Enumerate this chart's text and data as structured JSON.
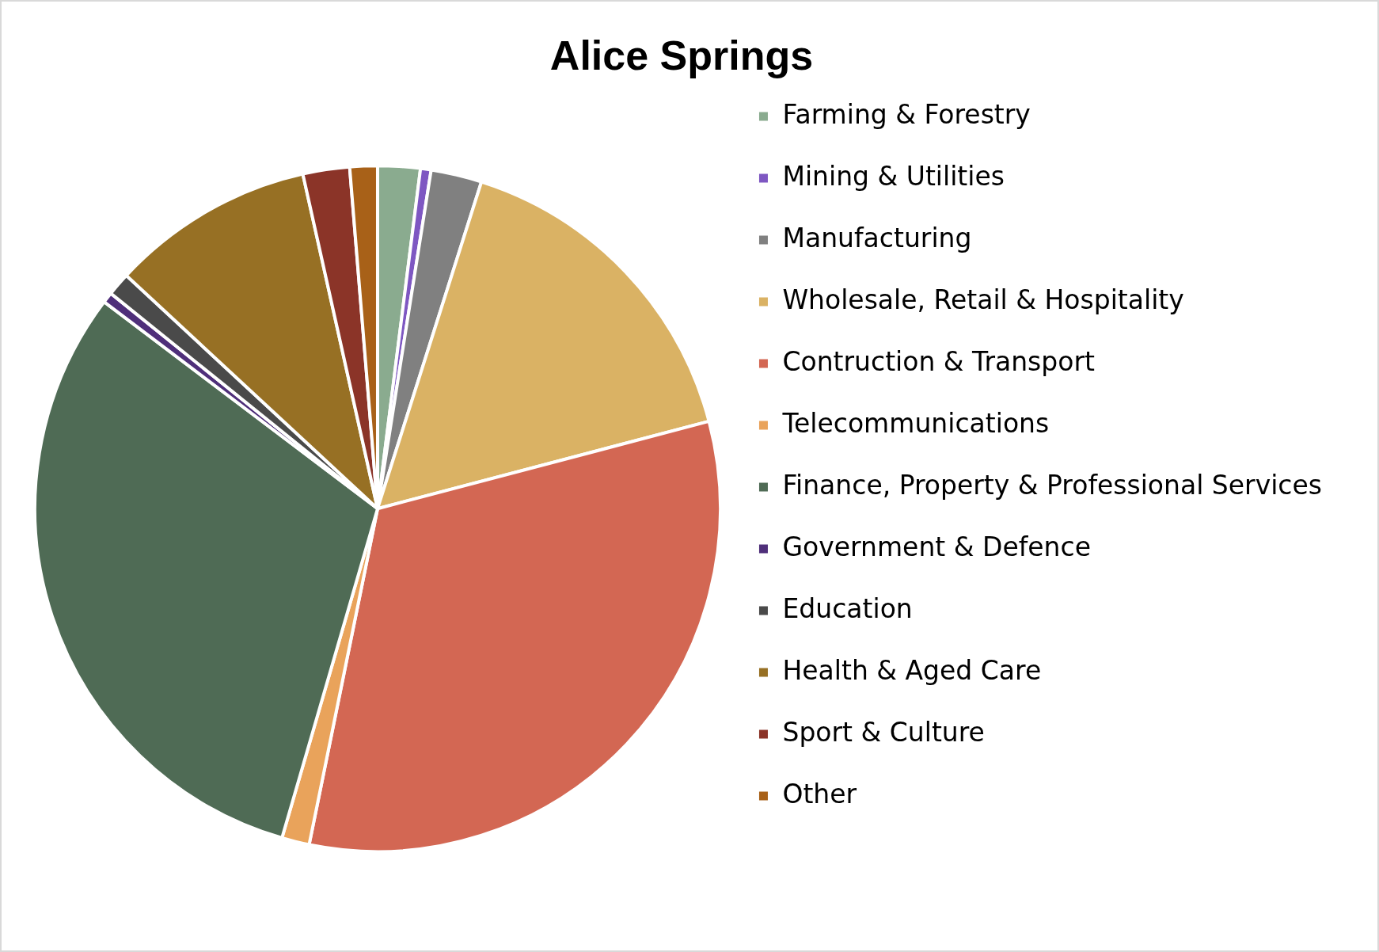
{
  "chart_data": {
    "type": "pie",
    "title": "Alice Springs",
    "categories": [
      "Farming & Forestry",
      "Mining & Utilities",
      "Manufacturing",
      "Wholesale, Retail & Hospitality",
      "Contruction & Transport",
      "Telecommunications",
      "Finance, Property & Professional Services",
      "Government & Defence",
      "Education",
      "Health & Aged Care",
      "Sport & Culture",
      "Other"
    ],
    "values": [
      2,
      0.5,
      2.4,
      16,
      32.3,
      1.3,
      30.8,
      0.5,
      1.1,
      9.6,
      2.2,
      1.3
    ],
    "colors": [
      "#8aab8f",
      "#7e57c2",
      "#808080",
      "#dab264",
      "#d36753",
      "#e9a35b",
      "#4f6b55",
      "#4f2f7a",
      "#4a4a4a",
      "#977024",
      "#8b3428",
      "#a86118"
    ],
    "legend": "right"
  }
}
